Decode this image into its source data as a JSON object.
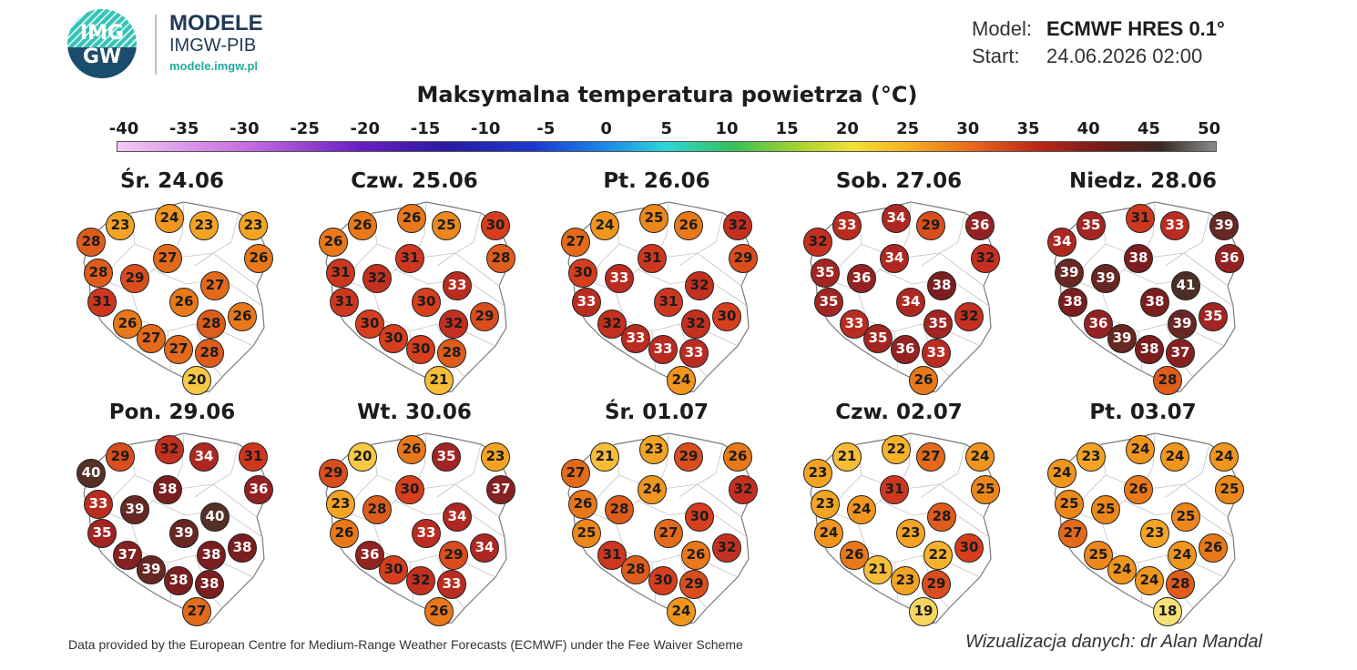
{
  "logo": {
    "name": "MODELE",
    "org": "IMGW-PIB",
    "url": "modele.imgw.pl",
    "emblem_top": "IMG",
    "emblem_bottom": "GW"
  },
  "model": {
    "model_label": "Model:",
    "model_value": "ECMWF HRES 0.1°",
    "start_label": "Start:",
    "start_value": "24.06.2026 02:00"
  },
  "title": "Maksymalna temperatura powietrza (°C)",
  "scale": [
    "-40",
    "-35",
    "-30",
    "-25",
    "-20",
    "-15",
    "-10",
    "-5",
    "0",
    "5",
    "10",
    "15",
    "20",
    "25",
    "30",
    "35",
    "40",
    "45",
    "50"
  ],
  "panels": [
    {
      "date": "Śr. 24.06",
      "values": [
        23,
        24,
        23,
        23,
        28,
        26,
        27,
        28,
        29,
        27,
        31,
        26,
        26,
        28,
        26,
        27,
        27,
        28,
        20
      ]
    },
    {
      "date": "Czw. 25.06",
      "values": [
        26,
        26,
        25,
        30,
        26,
        28,
        31,
        31,
        32,
        33,
        31,
        30,
        29,
        32,
        30,
        30,
        30,
        28,
        21
      ]
    },
    {
      "date": "Pt. 26.06",
      "values": [
        24,
        25,
        26,
        32,
        27,
        29,
        31,
        30,
        33,
        32,
        33,
        31,
        30,
        32,
        32,
        33,
        33,
        33,
        24
      ]
    },
    {
      "date": "Sob. 27.06",
      "values": [
        33,
        34,
        29,
        36,
        32,
        32,
        34,
        35,
        36,
        38,
        35,
        34,
        32,
        35,
        33,
        35,
        36,
        33,
        26
      ]
    },
    {
      "date": "Niedz. 28.06",
      "values": [
        35,
        31,
        33,
        39,
        34,
        36,
        38,
        39,
        39,
        41,
        38,
        38,
        35,
        39,
        36,
        39,
        38,
        37,
        28
      ]
    },
    {
      "date": "Pon. 29.06",
      "values": [
        29,
        32,
        34,
        31,
        40,
        36,
        38,
        33,
        39,
        40,
        35,
        39,
        38,
        38,
        37,
        39,
        38,
        38,
        27
      ]
    },
    {
      "date": "Wt. 30.06",
      "values": [
        20,
        26,
        35,
        23,
        29,
        37,
        30,
        23,
        28,
        34,
        26,
        33,
        34,
        29,
        36,
        30,
        32,
        33,
        26
      ]
    },
    {
      "date": "Śr. 01.07",
      "values": [
        21,
        23,
        29,
        26,
        27,
        32,
        24,
        26,
        28,
        30,
        25,
        27,
        32,
        26,
        31,
        28,
        30,
        29,
        24
      ]
    },
    {
      "date": "Czw. 02.07",
      "values": [
        21,
        22,
        27,
        24,
        23,
        25,
        31,
        23,
        24,
        28,
        24,
        23,
        30,
        22,
        26,
        21,
        23,
        29,
        19
      ]
    },
    {
      "date": "Pt. 03.07",
      "values": [
        23,
        24,
        24,
        24,
        24,
        25,
        26,
        25,
        25,
        25,
        27,
        23,
        26,
        24,
        25,
        24,
        24,
        28,
        18
      ]
    }
  ],
  "footer": {
    "credit": "Data provided by the European Centre for Medium-Range Weather Forecasts (ECMWF) under the Fee Waiver Scheme",
    "author": "Wizualizacja danych: dr Alan Mandal"
  }
}
